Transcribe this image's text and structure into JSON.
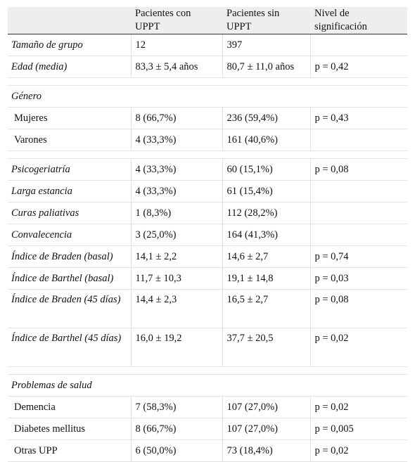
{
  "header": {
    "col0": "",
    "col1": "Pacientes con UPPT",
    "col2": "Pacientes sin UPPT",
    "col3": "Nivel de significación"
  },
  "rows": [
    {
      "label": "Tamaño de grupo",
      "con": "12",
      "sin": "397",
      "p": ""
    },
    {
      "label": "Edad (media)",
      "con": "83,3 ± 5,4 años",
      "sin": "80,7 ± 11,0 años",
      "p": "p = 0,42"
    },
    {
      "label": "Género"
    },
    {
      "label": "Mujeres",
      "con": "8 (66,7%)",
      "sin": "236 (59,4%)",
      "p": "p = 0,43"
    },
    {
      "label": "Varones",
      "con": "4 (33,3%)",
      "sin": "161 (40,6%)",
      "p": ""
    },
    {
      "label": "Psicogeriatría",
      "con": "4 (33,3%)",
      "sin": "60 (15,1%)",
      "p": "p = 0,08"
    },
    {
      "label": "Larga estancia",
      "con": "4 (33,3%)",
      "sin": "61 (15,4%)",
      "p": ""
    },
    {
      "label": "Curas paliativas",
      "con": "1 (8,3%)",
      "sin": "112 (28,2%)",
      "p": ""
    },
    {
      "label": "Convalecencia",
      "con": "3 (25,0%)",
      "sin": "164 (41,3%)",
      "p": ""
    },
    {
      "label": "Índice de Braden (basal)",
      "con": "14,1 ± 2,2",
      "sin": "14,6 ± 2,7",
      "p": "p = 0,74"
    },
    {
      "label": "Índice de Barthel (basal)",
      "con": "11,7 ± 10,3",
      "sin": "19,1 ± 14,8",
      "p": "p = 0,03"
    },
    {
      "label": "Índice de Braden (45 días)",
      "con": "14,4 ± 2,3",
      "sin": "16,5 ± 2,7",
      "p": "p = 0,08"
    },
    {
      "label": "Índice de Barthel (45 días)",
      "con": "16,0 ± 19,2",
      "sin": "37,7 ± 20,5",
      "p": "p = 0,02"
    },
    {
      "label": "Problemas de salud"
    },
    {
      "label": "Demencia",
      "con": "7 (58,3%)",
      "sin": "107 (27,0%)",
      "p": "p = 0,02"
    },
    {
      "label": "Diabetes mellitus",
      "con": "8 (66,7%)",
      "sin": "107 (27,0%)",
      "p": "p = 0,005"
    },
    {
      "label": "Otras UPP",
      "con": "6 (50,0%)",
      "sin": "73 (18,4%)",
      "p": "p = 0,02"
    }
  ]
}
